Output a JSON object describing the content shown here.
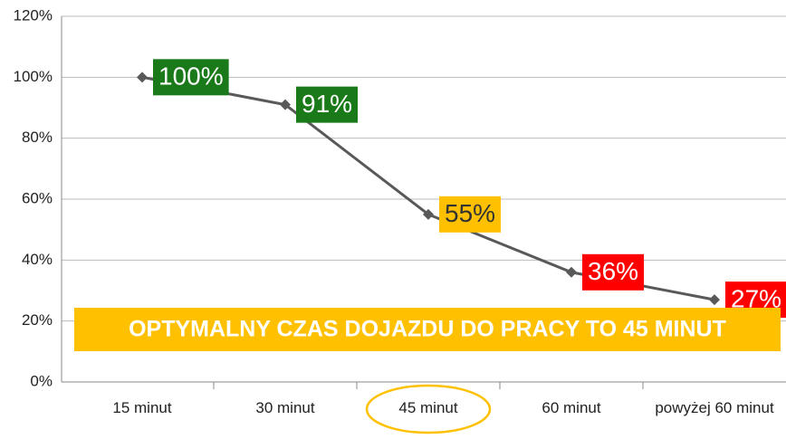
{
  "chart_data": {
    "type": "line",
    "categories": [
      "15 minut",
      "30 minut",
      "45 minut",
      "60 minut",
      "powyżej 60 minut"
    ],
    "series": [
      {
        "name": null,
        "color": "#595959",
        "values": [
          100,
          91,
          55,
          36,
          27
        ],
        "value_labels": [
          "100%",
          "91%",
          "55%",
          "36%",
          "27%"
        ],
        "label_colors": [
          "#1a7a1a",
          "#1a7a1a",
          "#ffc000",
          "#ff0000",
          "#ff0000"
        ],
        "label_text_colors": [
          "#ffffff",
          "#ffffff",
          "#333333",
          "#ffffff",
          "#ffffff"
        ]
      }
    ],
    "ylim": [
      0,
      120
    ],
    "yticks": [
      {
        "value": 0,
        "label": "0%"
      },
      {
        "value": 20,
        "label": "20%"
      },
      {
        "value": 40,
        "label": "40%"
      },
      {
        "value": 60,
        "label": "60%"
      },
      {
        "value": 80,
        "label": "80%"
      },
      {
        "value": 100,
        "label": "100%"
      },
      {
        "value": 120,
        "label": "120%"
      }
    ],
    "grid": true,
    "annotation": "OPTYMALNY CZAS DOJAZDU DO PRACY TO 45 MINUT"
  }
}
